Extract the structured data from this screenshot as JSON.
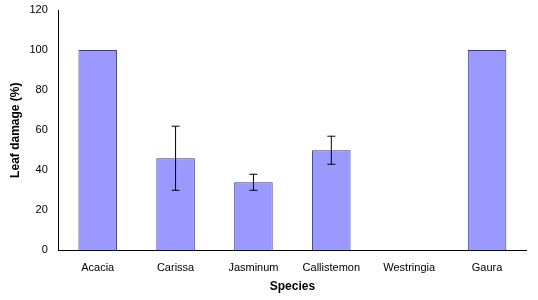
{
  "chart_data": {
    "type": "bar",
    "x_label": "Species",
    "y_label": "Leaf damage (%)",
    "categories": [
      "Acacia",
      "Carissa",
      "Jasminum",
      "Callistemon",
      "Westringia",
      "Gaura"
    ],
    "values": [
      100,
      46,
      34,
      50,
      0,
      100
    ],
    "errors": [
      null,
      16,
      4,
      7,
      null,
      null
    ],
    "color": "#9999ff",
    "ylim": [
      0,
      120
    ],
    "yticks": [
      0,
      20,
      40,
      60,
      80,
      100,
      120
    ],
    "grid": false
  }
}
